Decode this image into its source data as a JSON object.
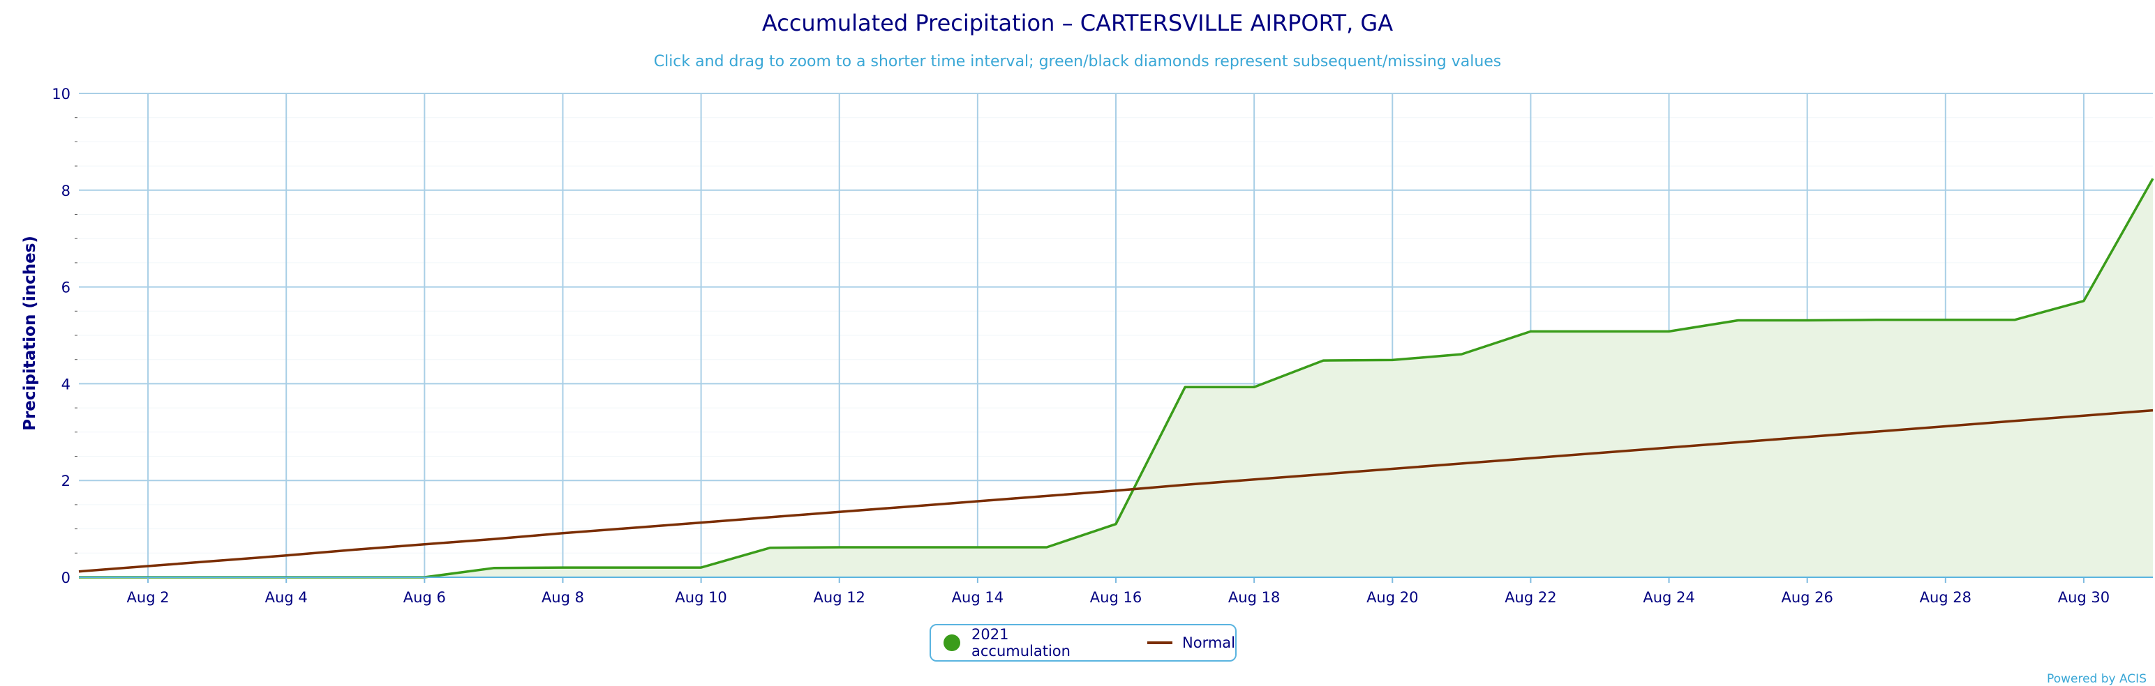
{
  "chart_data": {
    "type": "area",
    "title": "Accumulated Precipitation – CARTERSVILLE AIRPORT, GA",
    "subtitle": "Click and drag to zoom to a shorter time interval; green/black diamonds represent subsequent/missing values",
    "xlabel": "",
    "ylabel": "Precipitation (inches)",
    "xlim": [
      1,
      31
    ],
    "ylim": [
      0,
      10
    ],
    "x_ticks": [
      2,
      4,
      6,
      8,
      10,
      12,
      14,
      16,
      18,
      20,
      22,
      24,
      26,
      28,
      30
    ],
    "x_tick_labels": [
      "Aug 2",
      "Aug 4",
      "Aug 6",
      "Aug 8",
      "Aug 10",
      "Aug 12",
      "Aug 14",
      "Aug 16",
      "Aug 18",
      "Aug 20",
      "Aug 22",
      "Aug 24",
      "Aug 26",
      "Aug 28",
      "Aug 30"
    ],
    "y_ticks": [
      0,
      2,
      4,
      6,
      8,
      10
    ],
    "y_tick_labels": [
      "0",
      "2",
      "4",
      "6",
      "8",
      "10"
    ],
    "grid": true,
    "legend_position": "bottom-center",
    "series": [
      {
        "name": "2021 accumulation",
        "color": "#3a9c1a",
        "fill": "#e9f3e3",
        "x": [
          1,
          2,
          3,
          4,
          5,
          6,
          7,
          8,
          9,
          10,
          11,
          12,
          13,
          14,
          15,
          16,
          17,
          18,
          19,
          20,
          21,
          22,
          23,
          24,
          25,
          26,
          27,
          28,
          29,
          30,
          31
        ],
        "values": [
          0.0,
          0.0,
          0.0,
          0.0,
          0.0,
          0.0,
          0.19,
          0.2,
          0.2,
          0.2,
          0.61,
          0.62,
          0.62,
          0.62,
          0.62,
          1.1,
          3.93,
          3.93,
          4.48,
          4.49,
          4.61,
          5.08,
          5.08,
          5.08,
          5.31,
          5.31,
          5.32,
          5.32,
          5.32,
          5.71,
          8.24
        ]
      },
      {
        "name": "Normal",
        "color": "#7b2e04",
        "x": [
          1,
          2,
          3,
          4,
          5,
          6,
          7,
          8,
          9,
          10,
          11,
          12,
          13,
          14,
          15,
          16,
          17,
          18,
          19,
          20,
          21,
          22,
          23,
          24,
          25,
          26,
          27,
          28,
          29,
          30,
          31
        ],
        "values": [
          0.12,
          0.23,
          0.34,
          0.45,
          0.57,
          0.68,
          0.79,
          0.91,
          1.02,
          1.13,
          1.24,
          1.35,
          1.46,
          1.57,
          1.68,
          1.79,
          1.91,
          2.02,
          2.13,
          2.24,
          2.35,
          2.46,
          2.57,
          2.68,
          2.79,
          2.9,
          3.01,
          3.12,
          3.23,
          3.34,
          3.45
        ]
      }
    ]
  },
  "legend": {
    "items": [
      {
        "label": "2021 accumulation",
        "color": "#3a9c1a"
      },
      {
        "label": "Normal",
        "color": "#7b2e04"
      }
    ]
  },
  "credits": "Powered by ACIS"
}
